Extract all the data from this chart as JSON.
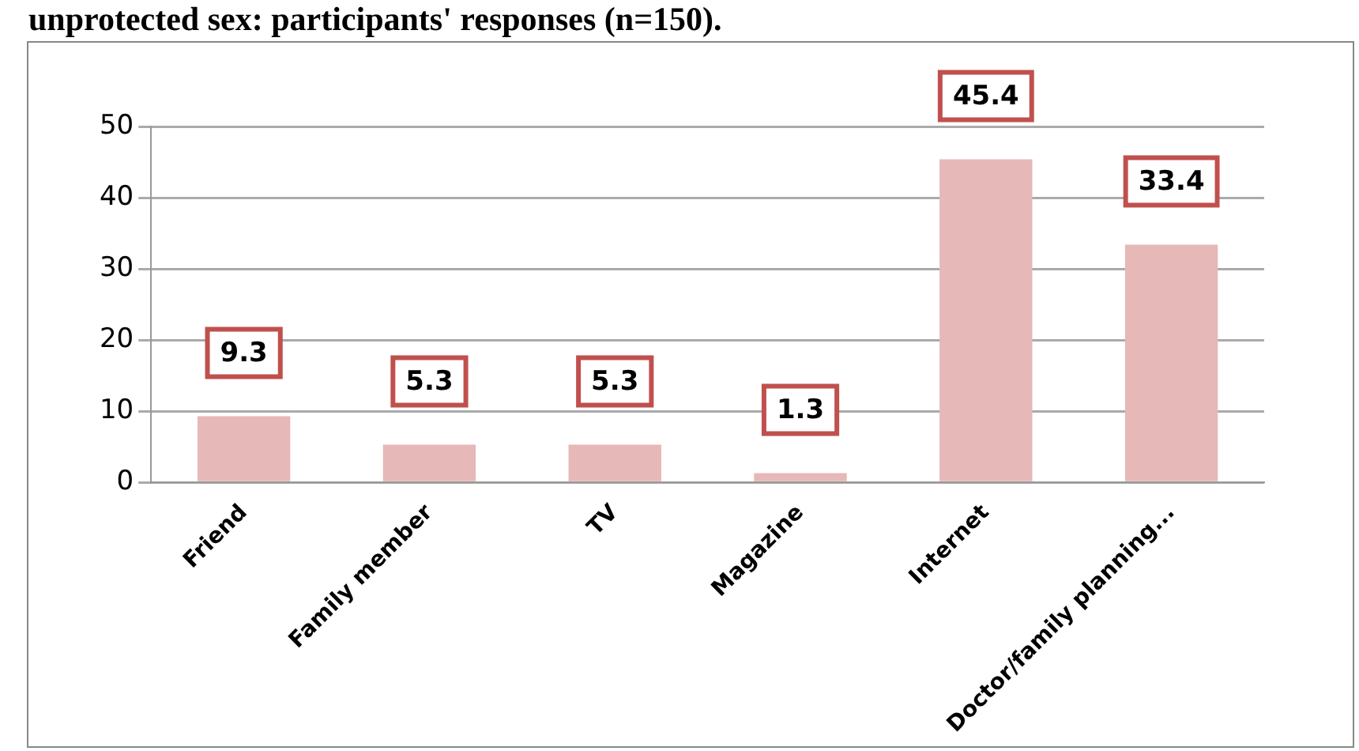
{
  "chart_data": {
    "type": "bar",
    "title": "unprotected sex: participants' responses (n=150).",
    "categories": [
      "Friend",
      "Family member",
      "TV",
      "Magazine",
      "Internet",
      "Doctor/family planning..."
    ],
    "values": [
      9.3,
      5.3,
      5.3,
      1.3,
      45.4,
      33.4
    ],
    "color": "#e6b8b7",
    "ylim": [
      0,
      50
    ],
    "yticks": [
      0,
      10,
      20,
      30,
      40,
      50
    ],
    "grid": "y",
    "data_labels": true,
    "legend": false
  }
}
